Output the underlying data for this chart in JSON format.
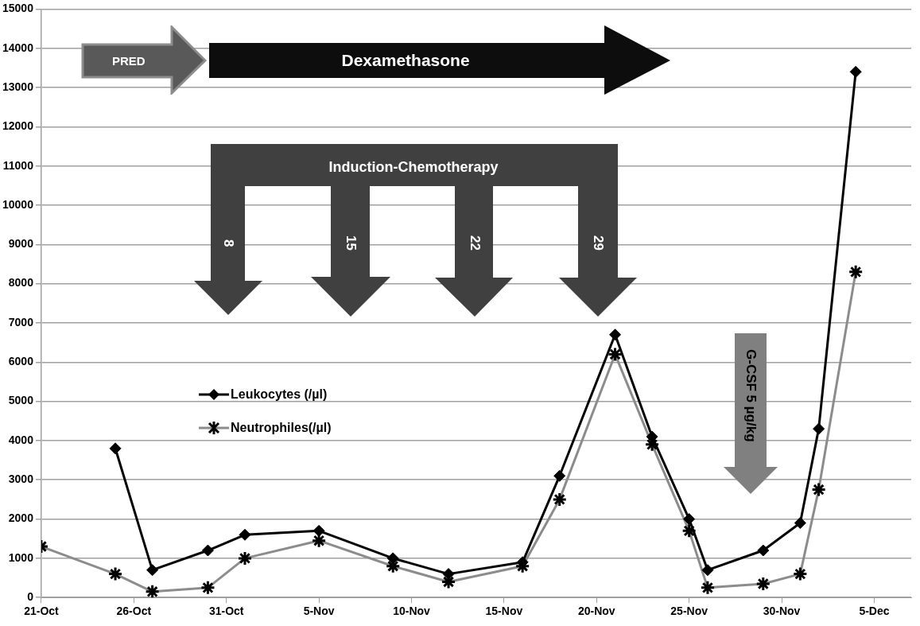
{
  "chart_data": {
    "type": "line",
    "x": [
      "--10-21",
      "--10-25",
      "--10-27",
      "--10-30",
      "--11-01",
      "--11-05",
      "--11-09",
      "--11-12",
      "--11-16",
      "--11-18",
      "--11-21",
      "--11-23",
      "--11-25",
      "--11-26",
      "--11-29",
      "--12-01",
      "--12-02",
      "--12-04"
    ],
    "series": [
      {
        "name": "Leukocytes (/µl)",
        "color": "#000000",
        "marker": "diamond",
        "values": [
          null,
          3800,
          700,
          1200,
          1600,
          1700,
          1000,
          600,
          900,
          3100,
          6700,
          4100,
          2000,
          700,
          1200,
          1900,
          4300,
          13400
        ]
      },
      {
        "name": "Neutrophiles(/µl)",
        "color": "#8c8c8c",
        "marker": "cross",
        "values": [
          1300,
          600,
          150,
          250,
          1000,
          1450,
          800,
          400,
          800,
          2500,
          6200,
          3900,
          1700,
          250,
          350,
          600,
          2750,
          8300
        ]
      }
    ],
    "xlim": [
      "--10-21",
      "--12-07"
    ],
    "xticks": [
      {
        "value": "--10-21",
        "label": "21-Oct"
      },
      {
        "value": "--10-26",
        "label": "26-Oct"
      },
      {
        "value": "--10-31",
        "label": "31-Oct"
      },
      {
        "value": "--11-05",
        "label": "5-Nov"
      },
      {
        "value": "--11-10",
        "label": "10-Nov"
      },
      {
        "value": "--11-15",
        "label": "15-Nov"
      },
      {
        "value": "--11-20",
        "label": "20-Nov"
      },
      {
        "value": "--11-25",
        "label": "25-Nov"
      },
      {
        "value": "--11-30",
        "label": "30-Nov"
      },
      {
        "value": "--12-05",
        "label": "5-Dec"
      }
    ],
    "ylim": [
      0,
      15000
    ],
    "yticks": [
      0,
      1000,
      2000,
      3000,
      4000,
      5000,
      6000,
      7000,
      8000,
      9000,
      10000,
      11000,
      12000,
      13000,
      14000,
      15000
    ],
    "grid": "y",
    "legend": "left",
    "annotations": [
      "PRED",
      "Dexamethasone",
      "Induction-Chemotherapy",
      "8",
      "15",
      "22",
      "29",
      "G-CSF 5 µg/kg"
    ]
  }
}
